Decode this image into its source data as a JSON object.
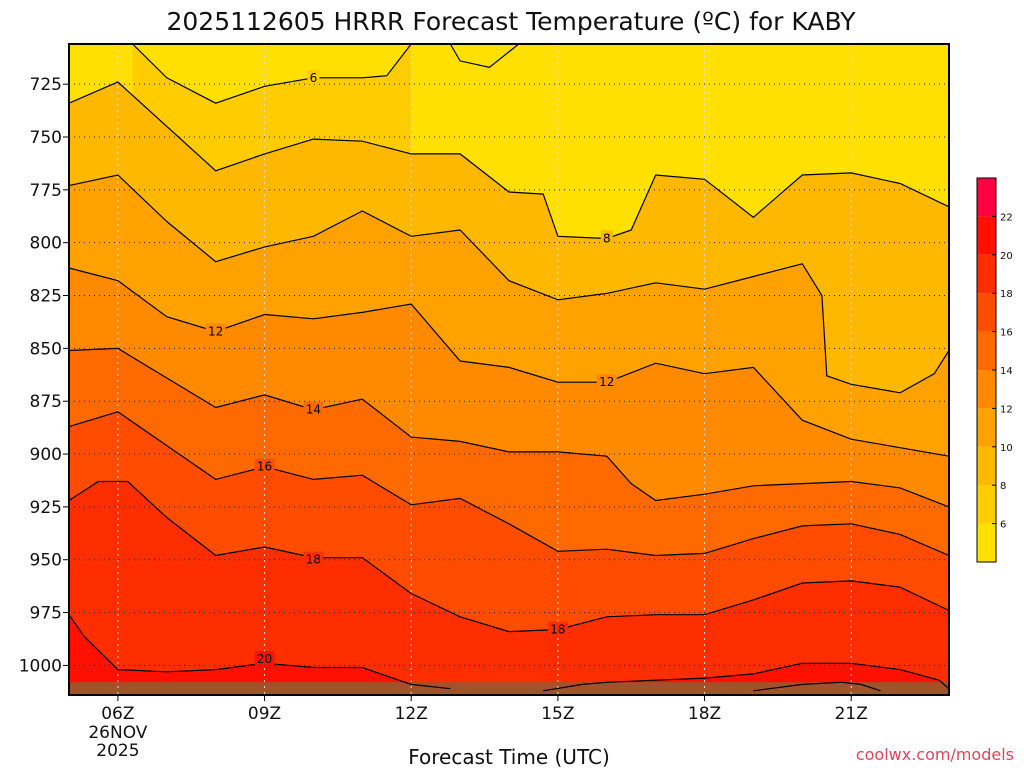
{
  "title": "2025112605 HRRR Forecast Temperature (ºC) for KABY",
  "credit": {
    "text": "coolwx.com/models",
    "color": "#e0455a"
  },
  "colors": {
    "levels": [
      "#ffe000",
      "#ffcc00",
      "#ffb800",
      "#ffa200",
      "#ff8a00",
      "#ff6a00",
      "#ff4c00",
      "#ff2e00",
      "#ff1000",
      "#ff0040",
      "#ff0070"
    ],
    "ground": "#a0522d"
  },
  "chart_data": {
    "type": "contour",
    "title": "2025112605 HRRR Forecast Temperature (ºC) for KABY",
    "xlabel": "Forecast Time (UTC)",
    "ylabel": "",
    "x_ticks": [
      {
        "value": 6,
        "label": "06Z",
        "sub": [
          "26NOV",
          "2025"
        ]
      },
      {
        "value": 9,
        "label": "09Z"
      },
      {
        "value": 12,
        "label": "12Z"
      },
      {
        "value": 15,
        "label": "15Z"
      },
      {
        "value": 18,
        "label": "18Z"
      },
      {
        "value": 21,
        "label": "21Z"
      }
    ],
    "xlim": [
      5,
      23
    ],
    "y_ticks": [
      725,
      750,
      775,
      800,
      825,
      850,
      875,
      900,
      925,
      950,
      975,
      1000
    ],
    "ylim": [
      706,
      1014
    ],
    "grid": true,
    "colorbar": {
      "ticks": [
        6,
        8,
        10,
        12,
        14,
        16,
        18,
        20,
        22
      ],
      "min": 4,
      "max": 24
    },
    "contours": [
      {
        "level": 6,
        "label": "6",
        "label_at": [
          10,
          722
        ],
        "points": [
          [
            6.3,
            706
          ],
          [
            7,
            722
          ],
          [
            8,
            734
          ],
          [
            9,
            726
          ],
          [
            10,
            722
          ],
          [
            11,
            722
          ],
          [
            11.5,
            721
          ],
          [
            12,
            706
          ]
        ],
        "extra": [
          [
            12.8,
            706
          ],
          [
            13,
            714
          ],
          [
            13.6,
            717
          ],
          [
            14.2,
            706
          ]
        ]
      },
      {
        "level": 8,
        "label": "8",
        "label_at": [
          16,
          798
        ],
        "points": [
          [
            5,
            734
          ],
          [
            6,
            724
          ],
          [
            7,
            745
          ],
          [
            8,
            766
          ],
          [
            9,
            758
          ],
          [
            10,
            751
          ],
          [
            11,
            752
          ],
          [
            12,
            758
          ],
          [
            13,
            758
          ],
          [
            14,
            776
          ],
          [
            14.7,
            777
          ],
          [
            15,
            797
          ],
          [
            16,
            798
          ],
          [
            16.5,
            794
          ],
          [
            17,
            768
          ],
          [
            18,
            770
          ],
          [
            19,
            788
          ],
          [
            20,
            768
          ],
          [
            21,
            767
          ],
          [
            22,
            772
          ],
          [
            23,
            783
          ]
        ]
      },
      {
        "level": 10,
        "label": "",
        "points": [
          [
            5,
            773
          ],
          [
            6,
            768
          ],
          [
            7,
            790
          ],
          [
            8,
            809
          ],
          [
            9,
            802
          ],
          [
            10,
            797
          ],
          [
            11,
            785
          ],
          [
            12,
            797
          ],
          [
            13,
            794
          ],
          [
            14,
            818
          ],
          [
            15,
            827
          ],
          [
            16,
            824
          ],
          [
            17,
            819
          ],
          [
            18,
            822
          ],
          [
            19,
            816
          ],
          [
            20,
            810
          ],
          [
            20.4,
            825
          ],
          [
            20.5,
            863
          ],
          [
            21,
            867
          ],
          [
            22,
            871
          ],
          [
            22.7,
            862
          ],
          [
            23,
            851
          ]
        ]
      },
      {
        "level": 12,
        "label": "12",
        "label_at": [
          16,
          866
        ],
        "extra_labels": [
          [
            "12",
            8,
            842
          ]
        ],
        "points": [
          [
            5,
            812
          ],
          [
            6,
            818
          ],
          [
            7,
            835
          ],
          [
            8,
            842
          ],
          [
            9,
            834
          ],
          [
            10,
            836
          ],
          [
            11,
            833
          ],
          [
            12,
            829
          ],
          [
            13,
            856
          ],
          [
            14,
            859
          ],
          [
            15,
            866
          ],
          [
            16,
            866
          ],
          [
            17,
            857
          ],
          [
            18,
            862
          ],
          [
            19,
            859
          ],
          [
            20,
            884
          ],
          [
            21,
            893
          ],
          [
            22,
            897
          ],
          [
            23,
            901
          ]
        ]
      },
      {
        "level": 14,
        "label": "14",
        "label_at": [
          10,
          879
        ],
        "points": [
          [
            5,
            851
          ],
          [
            6,
            850
          ],
          [
            7,
            864
          ],
          [
            8,
            878
          ],
          [
            9,
            872
          ],
          [
            10,
            879
          ],
          [
            11,
            874
          ],
          [
            12,
            892
          ],
          [
            13,
            894
          ],
          [
            14,
            899
          ],
          [
            15,
            899
          ],
          [
            16,
            901
          ],
          [
            16.5,
            914
          ],
          [
            17,
            922
          ],
          [
            18,
            919
          ],
          [
            19,
            915
          ],
          [
            20,
            914
          ],
          [
            21,
            913
          ],
          [
            22,
            916
          ],
          [
            23,
            925
          ]
        ]
      },
      {
        "level": 16,
        "label": "16",
        "label_at": [
          9,
          906
        ],
        "points": [
          [
            5,
            887
          ],
          [
            6,
            880
          ],
          [
            7,
            896
          ],
          [
            8,
            912
          ],
          [
            9,
            906
          ],
          [
            10,
            912
          ],
          [
            11,
            910
          ],
          [
            12,
            924
          ],
          [
            13,
            921
          ],
          [
            14,
            933
          ],
          [
            15,
            946
          ],
          [
            16,
            945
          ],
          [
            17,
            948
          ],
          [
            18,
            947
          ],
          [
            19,
            940
          ],
          [
            20,
            934
          ],
          [
            21,
            933
          ],
          [
            22,
            938
          ],
          [
            23,
            948
          ]
        ]
      },
      {
        "level": 18,
        "label": "18",
        "label_at": [
          15,
          983
        ],
        "extra_labels": [
          [
            "18",
            10,
            950
          ]
        ],
        "points": [
          [
            5,
            922
          ],
          [
            5.6,
            913
          ],
          [
            6.2,
            913
          ],
          [
            7,
            930
          ],
          [
            8,
            948
          ],
          [
            9,
            944
          ],
          [
            10,
            949
          ],
          [
            11,
            949
          ],
          [
            12,
            966
          ],
          [
            13,
            977
          ],
          [
            14,
            984
          ],
          [
            15,
            983
          ],
          [
            16,
            977
          ],
          [
            17,
            976
          ],
          [
            18,
            976
          ],
          [
            19,
            969
          ],
          [
            20,
            961
          ],
          [
            21,
            960
          ],
          [
            22,
            963
          ],
          [
            23,
            974
          ]
        ]
      },
      {
        "level": 20,
        "label": "20",
        "label_at": [
          9,
          997
        ],
        "points": [
          [
            5,
            976
          ],
          [
            5.3,
            986
          ],
          [
            6,
            1002
          ],
          [
            7,
            1003
          ],
          [
            8,
            1002
          ],
          [
            9,
            999
          ],
          [
            10,
            1001
          ],
          [
            11,
            1001
          ],
          [
            11.5,
            1005
          ],
          [
            12,
            1009
          ],
          [
            12.8,
            1011
          ]
        ],
        "extra": [
          [
            14.7,
            1012
          ],
          [
            15.5,
            1009
          ],
          [
            16,
            1008
          ],
          [
            17,
            1007
          ],
          [
            18,
            1006
          ],
          [
            19,
            1004
          ],
          [
            20,
            999
          ],
          [
            21,
            999
          ],
          [
            22,
            1002
          ],
          [
            22.8,
            1007
          ],
          [
            23,
            1011
          ]
        ]
      },
      {
        "level": 22,
        "label": "",
        "points": [],
        "extra": [
          [
            19,
            1012
          ],
          [
            20,
            1009
          ],
          [
            20.8,
            1008
          ],
          [
            21.2,
            1009
          ],
          [
            21.6,
            1012
          ]
        ]
      }
    ],
    "ground_pressure": [
      [
        5,
        1007
      ],
      [
        23,
        1007
      ]
    ]
  }
}
